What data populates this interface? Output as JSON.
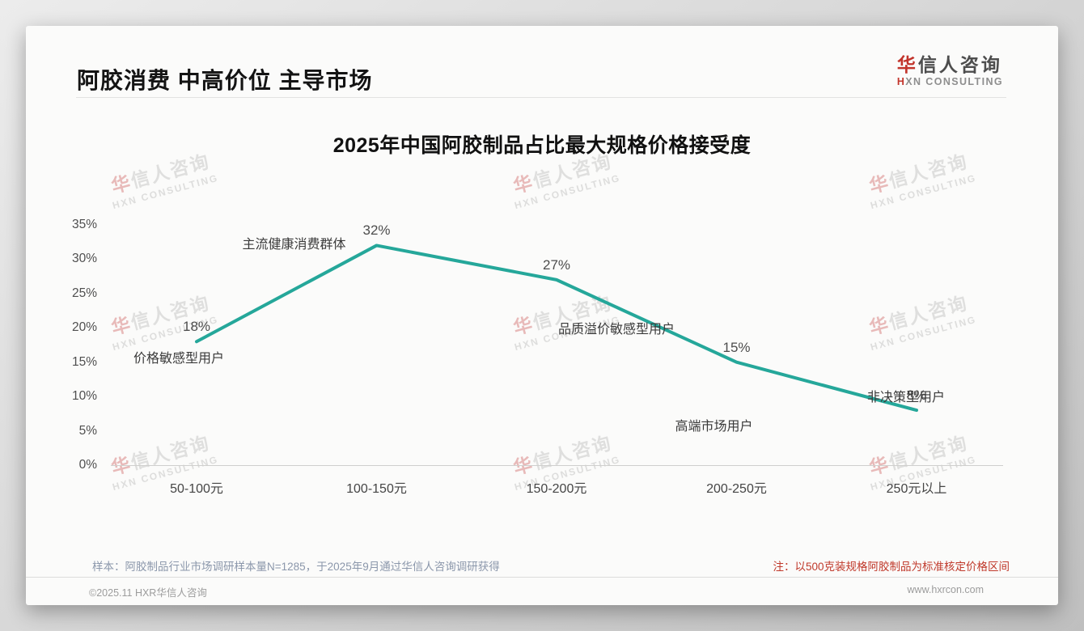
{
  "header": {
    "title": "阿胶消费 中高价位 主导市场"
  },
  "logo": {
    "cn_first": "华",
    "cn_rest": "信人咨询",
    "en_first": "H",
    "en_rest": "XN CONSULTING"
  },
  "watermark": {
    "cn_first": "华",
    "cn_rest": "信人咨询",
    "en": "HXN CONSULTING"
  },
  "chart_data": {
    "type": "line",
    "title": "2025年中国阿胶制品占比最大规格价格接受度",
    "categories": [
      "50-100元",
      "100-150元",
      "150-200元",
      "200-250元",
      "250元以上"
    ],
    "values": [
      18,
      32,
      27,
      15,
      8
    ],
    "value_labels": [
      "18%",
      "32%",
      "27%",
      "15%",
      "8%"
    ],
    "point_annotations": [
      "价格敏感型用户",
      "主流健康消费群体",
      "品质溢价敏感型用户",
      "高端市场用户",
      "非决策型用户"
    ],
    "yticks": [
      "35%",
      "30%",
      "25%",
      "20%",
      "15%",
      "10%",
      "5%",
      "0%"
    ],
    "ylim": [
      0,
      35
    ],
    "ytick_step": 5,
    "grid": false,
    "legend_position": "none",
    "line_color": "#25a79a",
    "xlabel": "",
    "ylabel": ""
  },
  "notes": {
    "sample": "样本：阿胶制品行业市场调研样本量N=1285，于2025年9月通过华信人咨询调研获得",
    "price_basis": "注：以500克装规格阿胶制品为标准核定价格区间"
  },
  "footer": {
    "copyright": "©2025.11 HXR华信人咨询",
    "website": "www.hxrcon.com"
  }
}
